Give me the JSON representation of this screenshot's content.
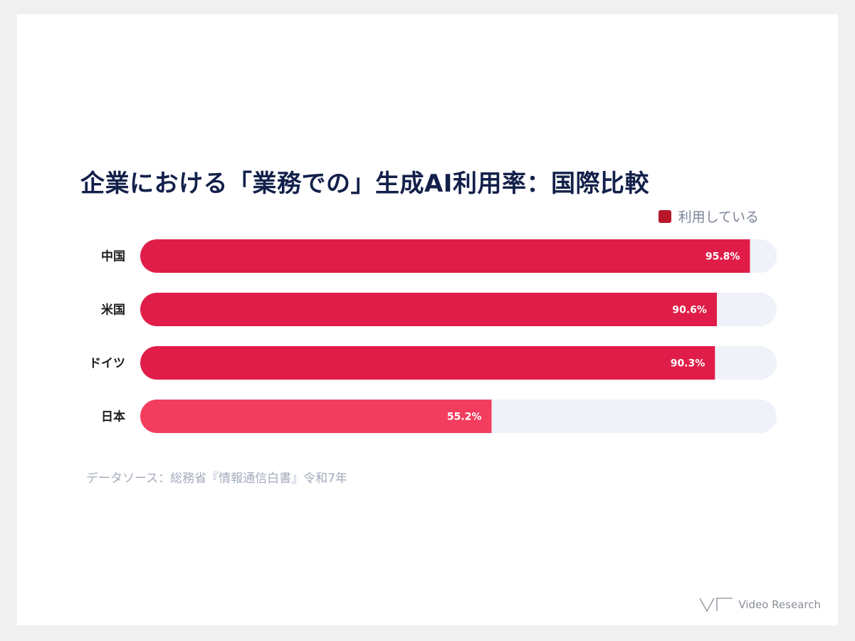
{
  "title": "企業における「業務での」生成AI利用率：国際比較",
  "legend": {
    "label": "利用している",
    "color": "#b8182a"
  },
  "source": "データソース：総務省『情報通信白書』令和7年",
  "logo": {
    "text": "Video Research"
  },
  "colors": {
    "primary": "#e01d48",
    "highlight": "#f33d5f",
    "track": "#eff2f8"
  },
  "chart_data": {
    "type": "bar",
    "orientation": "horizontal",
    "categories": [
      "中国",
      "米国",
      "ドイツ",
      "日本"
    ],
    "values": [
      95.8,
      90.6,
      90.3,
      55.2
    ],
    "value_labels": [
      "95.8%",
      "90.6%",
      "90.3%",
      "55.2%"
    ],
    "series": [
      {
        "name": "利用している",
        "values": [
          95.8,
          90.6,
          90.3,
          55.2
        ]
      }
    ],
    "xlim": [
      0,
      100
    ],
    "highlight_category": "日本",
    "legend_position": "top-right",
    "grid": false
  }
}
